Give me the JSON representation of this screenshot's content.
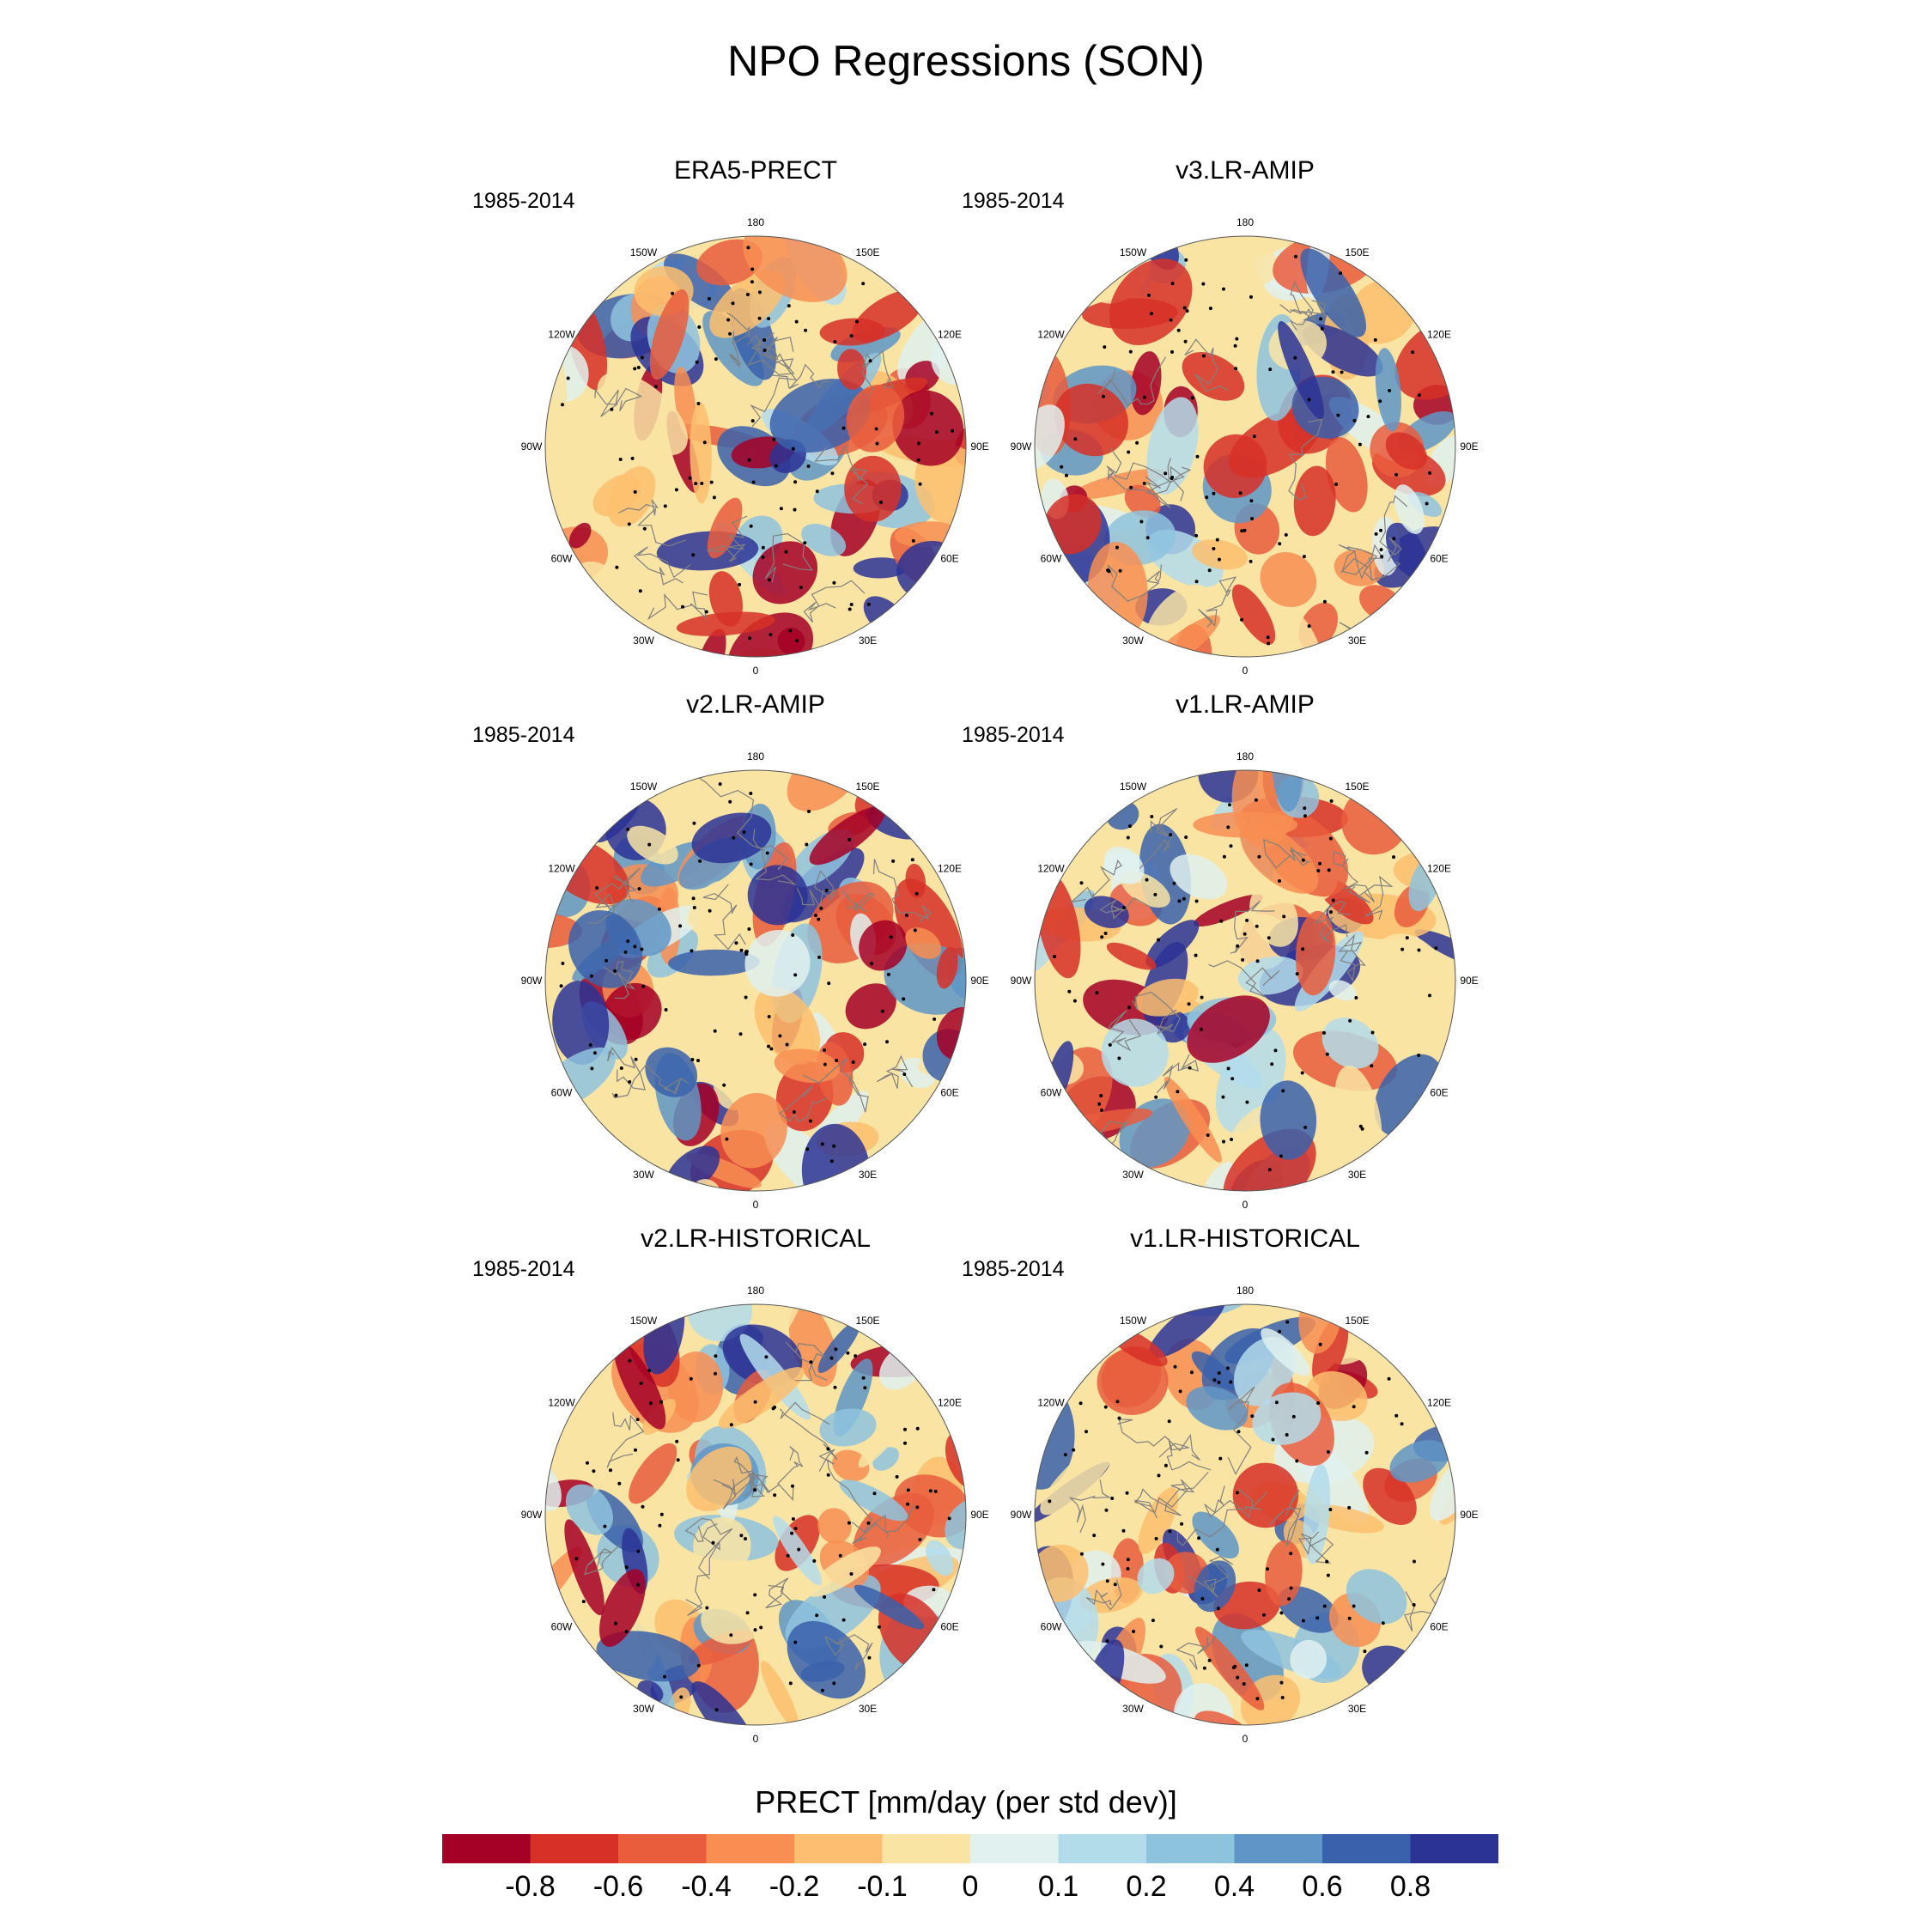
{
  "title": "NPO Regressions (SON)",
  "panels": [
    {
      "title": "ERA5-PRECT",
      "period": "1985-2014"
    },
    {
      "title": "v3.LR-AMIP",
      "period": "1985-2014"
    },
    {
      "title": "v2.LR-AMIP",
      "period": "1985-2014"
    },
    {
      "title": "v1.LR-AMIP",
      "period": "1985-2014"
    },
    {
      "title": "v2.LR-HISTORICAL",
      "period": "1985-2014"
    },
    {
      "title": "v1.LR-HISTORICAL",
      "period": "1985-2014"
    }
  ],
  "lon_labels": [
    "180",
    "150E",
    "120E",
    "90E",
    "60E",
    "30E",
    "0",
    "30W",
    "60W",
    "90W",
    "120W",
    "150W"
  ],
  "colorbar": {
    "title": "PRECT [mm/day (per std dev)]",
    "tick_labels": [
      "-0.8",
      "-0.6",
      "-0.4",
      "-0.2",
      "-0.1",
      "0",
      "0.1",
      "0.2",
      "0.4",
      "0.6",
      "0.8"
    ],
    "colors": [
      "#a50026",
      "#d73027",
      "#e95d3d",
      "#f88e52",
      "#fdbf6f",
      "#f9e4a4",
      "#e0f1f0",
      "#b3dceb",
      "#8ec3de",
      "#5f96c7",
      "#3a62ac",
      "#2b3395"
    ]
  }
}
